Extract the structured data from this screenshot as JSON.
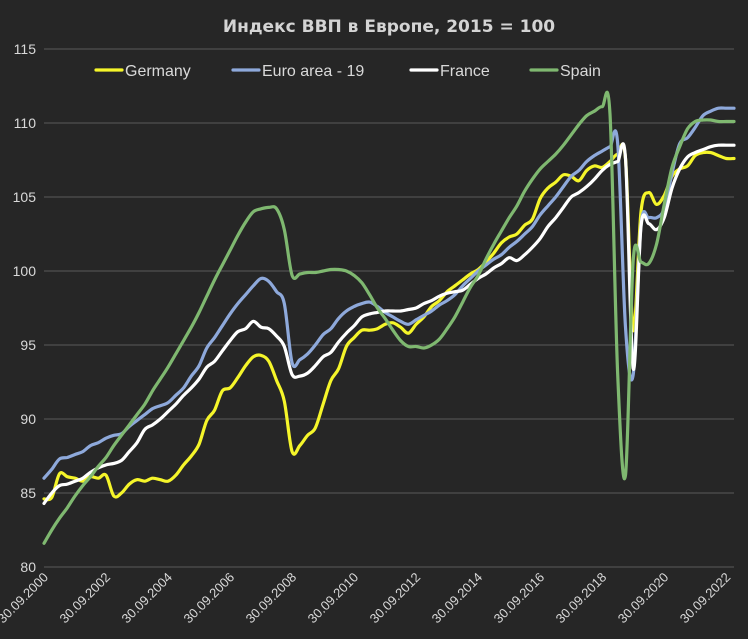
{
  "chart_data": {
    "type": "line",
    "title": "Индекс ВВП в Европе, 2015 = 100",
    "xlabel": "",
    "ylabel": "",
    "ylim": [
      80,
      115
    ],
    "yticks": [
      80,
      85,
      90,
      95,
      100,
      105,
      110,
      115
    ],
    "xlim": [
      2000.75,
      2023.0
    ],
    "x_tick_labels": [
      "30.09.2000",
      "30.09.2002",
      "30.09.2004",
      "30.09.2006",
      "30.09.2008",
      "30.09.2010",
      "30.09.2012",
      "30.09.2014",
      "30.09.2016",
      "30.09.2018",
      "30.09.2020",
      "30.09.2022"
    ],
    "x_tick_positions": [
      2000.75,
      2002.75,
      2004.75,
      2006.75,
      2008.75,
      2010.75,
      2012.75,
      2014.75,
      2016.75,
      2018.75,
      2020.75,
      2022.75
    ],
    "grid": "horizontal",
    "legend_position": "top",
    "background": "#262626",
    "series": [
      {
        "name": "Germany",
        "color": "#f5f52a",
        "x": [
          2000.75,
          2001.0,
          2001.25,
          2001.5,
          2001.75,
          2002.0,
          2002.25,
          2002.5,
          2002.75,
          2003.0,
          2003.25,
          2003.5,
          2003.75,
          2004.0,
          2004.25,
          2004.5,
          2004.75,
          2005.0,
          2005.25,
          2005.5,
          2005.75,
          2006.0,
          2006.25,
          2006.5,
          2006.75,
          2007.0,
          2007.25,
          2007.5,
          2007.75,
          2008.0,
          2008.25,
          2008.5,
          2008.75,
          2009.0,
          2009.25,
          2009.5,
          2009.75,
          2010.0,
          2010.25,
          2010.5,
          2010.75,
          2011.0,
          2011.25,
          2011.5,
          2011.75,
          2012.0,
          2012.25,
          2012.5,
          2012.75,
          2013.0,
          2013.25,
          2013.5,
          2013.75,
          2014.0,
          2014.25,
          2014.5,
          2014.75,
          2015.0,
          2015.25,
          2015.5,
          2015.75,
          2016.0,
          2016.25,
          2016.5,
          2016.75,
          2017.0,
          2017.25,
          2017.5,
          2017.75,
          2018.0,
          2018.25,
          2018.5,
          2018.75,
          2019.0,
          2019.25,
          2019.5,
          2019.75,
          2020.0,
          2020.25,
          2020.5,
          2020.75,
          2021.0,
          2021.25,
          2021.5,
          2021.75,
          2022.0,
          2022.25,
          2022.5,
          2022.75,
          2023.0
        ],
        "values": [
          84.6,
          84.7,
          86.3,
          86.1,
          86.0,
          85.8,
          86.1,
          86.0,
          86.2,
          84.8,
          85.0,
          85.6,
          85.9,
          85.8,
          86.0,
          85.9,
          85.8,
          86.2,
          86.9,
          87.5,
          88.3,
          89.9,
          90.6,
          91.9,
          92.1,
          92.8,
          93.6,
          94.2,
          94.3,
          93.9,
          92.6,
          91.2,
          87.8,
          88.2,
          88.9,
          89.4,
          91.0,
          92.6,
          93.4,
          94.9,
          95.5,
          96.0,
          96.0,
          96.1,
          96.4,
          96.5,
          96.2,
          95.8,
          96.4,
          96.9,
          97.6,
          98.0,
          98.6,
          99.0,
          99.4,
          99.8,
          100.1,
          100.6,
          101.2,
          101.9,
          102.3,
          102.5,
          103.1,
          103.5,
          104.9,
          105.6,
          106.0,
          106.5,
          106.4,
          106.1,
          106.8,
          107.1,
          107.0,
          107.4,
          107.9,
          107.6,
          96.0,
          104.0,
          105.3,
          104.5,
          105.1,
          106.4,
          106.9,
          107.1,
          107.8,
          108.0,
          108.0,
          107.8,
          107.6,
          107.6
        ]
      },
      {
        "name": "Euro area - 19",
        "color": "#8ea9db",
        "x": [
          2000.75,
          2001.0,
          2001.25,
          2001.5,
          2001.75,
          2002.0,
          2002.25,
          2002.5,
          2002.75,
          2003.0,
          2003.25,
          2003.5,
          2003.75,
          2004.0,
          2004.25,
          2004.5,
          2004.75,
          2005.0,
          2005.25,
          2005.5,
          2005.75,
          2006.0,
          2006.25,
          2006.5,
          2006.75,
          2007.0,
          2007.25,
          2007.5,
          2007.75,
          2008.0,
          2008.25,
          2008.5,
          2008.75,
          2009.0,
          2009.25,
          2009.5,
          2009.75,
          2010.0,
          2010.25,
          2010.5,
          2010.75,
          2011.0,
          2011.25,
          2011.5,
          2011.75,
          2012.0,
          2012.25,
          2012.5,
          2012.75,
          2013.0,
          2013.25,
          2013.5,
          2013.75,
          2014.0,
          2014.25,
          2014.5,
          2014.75,
          2015.0,
          2015.25,
          2015.5,
          2015.75,
          2016.0,
          2016.25,
          2016.5,
          2016.75,
          2017.0,
          2017.25,
          2017.5,
          2017.75,
          2018.0,
          2018.25,
          2018.5,
          2018.75,
          2019.0,
          2019.25,
          2019.5,
          2019.75,
          2020.0,
          2020.25,
          2020.5,
          2020.75,
          2021.0,
          2021.25,
          2021.5,
          2021.75,
          2022.0,
          2022.25,
          2022.5,
          2022.75,
          2023.0
        ],
        "values": [
          86.0,
          86.6,
          87.3,
          87.4,
          87.6,
          87.8,
          88.2,
          88.4,
          88.7,
          88.9,
          89.0,
          89.5,
          89.9,
          90.3,
          90.7,
          90.9,
          91.1,
          91.6,
          92.1,
          92.9,
          93.6,
          94.8,
          95.5,
          96.3,
          97.1,
          97.8,
          98.4,
          99.0,
          99.5,
          99.3,
          98.6,
          97.8,
          93.8,
          94.0,
          94.4,
          95.0,
          95.7,
          96.1,
          96.8,
          97.3,
          97.6,
          97.8,
          97.9,
          97.6,
          97.2,
          96.9,
          96.6,
          96.4,
          96.7,
          97.0,
          97.3,
          97.7,
          98.0,
          98.4,
          99.0,
          99.5,
          100.0,
          100.4,
          100.8,
          101.1,
          101.6,
          102.0,
          102.5,
          103.0,
          103.8,
          104.4,
          105.0,
          105.7,
          106.4,
          106.8,
          107.4,
          107.8,
          108.1,
          108.4,
          108.6,
          96.2,
          93.0,
          103.1,
          103.6,
          103.6,
          104.2,
          106.6,
          108.6,
          109.0,
          109.7,
          110.5,
          110.8,
          111.0,
          111.0,
          111.0
        ]
      },
      {
        "name": "France",
        "color": "#ffffff",
        "x": [
          2000.75,
          2001.0,
          2001.25,
          2001.5,
          2001.75,
          2002.0,
          2002.25,
          2002.5,
          2002.75,
          2003.0,
          2003.25,
          2003.5,
          2003.75,
          2004.0,
          2004.25,
          2004.5,
          2004.75,
          2005.0,
          2005.25,
          2005.5,
          2005.75,
          2006.0,
          2006.25,
          2006.5,
          2006.75,
          2007.0,
          2007.25,
          2007.5,
          2007.75,
          2008.0,
          2008.25,
          2008.5,
          2008.75,
          2009.0,
          2009.25,
          2009.5,
          2009.75,
          2010.0,
          2010.25,
          2010.5,
          2010.75,
          2011.0,
          2011.25,
          2011.5,
          2011.75,
          2012.0,
          2012.25,
          2012.5,
          2012.75,
          2013.0,
          2013.25,
          2013.5,
          2013.75,
          2014.0,
          2014.25,
          2014.5,
          2014.75,
          2015.0,
          2015.25,
          2015.5,
          2015.75,
          2016.0,
          2016.25,
          2016.5,
          2016.75,
          2017.0,
          2017.25,
          2017.5,
          2017.75,
          2018.0,
          2018.25,
          2018.5,
          2018.75,
          2019.0,
          2019.25,
          2019.5,
          2019.75,
          2020.0,
          2020.25,
          2020.5,
          2020.75,
          2021.0,
          2021.25,
          2021.5,
          2021.75,
          2022.0,
          2022.25,
          2022.5,
          2022.75,
          2023.0
        ],
        "values": [
          84.3,
          85.0,
          85.5,
          85.6,
          85.8,
          86.0,
          86.4,
          86.7,
          86.9,
          87.0,
          87.2,
          87.8,
          88.4,
          89.3,
          89.6,
          90.0,
          90.5,
          91.0,
          91.6,
          92.1,
          92.7,
          93.5,
          93.9,
          94.6,
          95.3,
          95.9,
          96.1,
          96.6,
          96.2,
          96.1,
          95.6,
          94.9,
          93.0,
          92.9,
          93.1,
          93.6,
          94.2,
          94.5,
          95.2,
          95.8,
          96.3,
          96.9,
          97.1,
          97.2,
          97.3,
          97.3,
          97.3,
          97.4,
          97.5,
          97.8,
          98.0,
          98.3,
          98.5,
          98.6,
          98.7,
          99.1,
          99.5,
          99.8,
          100.2,
          100.5,
          100.9,
          100.7,
          101.1,
          101.6,
          102.2,
          103.0,
          103.6,
          104.3,
          105.0,
          105.3,
          105.7,
          106.2,
          106.8,
          107.2,
          107.4,
          107.6,
          93.4,
          103.0,
          103.2,
          102.8,
          103.6,
          105.6,
          106.9,
          107.7,
          108.0,
          108.2,
          108.4,
          108.5,
          108.5,
          108.5
        ]
      },
      {
        "name": "Spain",
        "color": "#7fb870",
        "x": [
          2000.75,
          2001.0,
          2001.25,
          2001.5,
          2001.75,
          2002.0,
          2002.25,
          2002.5,
          2002.75,
          2003.0,
          2003.25,
          2003.5,
          2003.75,
          2004.0,
          2004.25,
          2004.5,
          2004.75,
          2005.0,
          2005.25,
          2005.5,
          2005.75,
          2006.0,
          2006.25,
          2006.5,
          2006.75,
          2007.0,
          2007.25,
          2007.5,
          2007.75,
          2008.0,
          2008.25,
          2008.5,
          2008.75,
          2009.0,
          2009.25,
          2009.5,
          2009.75,
          2010.0,
          2010.25,
          2010.5,
          2010.75,
          2011.0,
          2011.25,
          2011.5,
          2011.75,
          2012.0,
          2012.25,
          2012.5,
          2012.75,
          2013.0,
          2013.25,
          2013.5,
          2013.75,
          2014.0,
          2014.25,
          2014.5,
          2014.75,
          2015.0,
          2015.25,
          2015.5,
          2015.75,
          2016.0,
          2016.25,
          2016.5,
          2016.75,
          2017.0,
          2017.25,
          2017.5,
          2017.75,
          2018.0,
          2018.25,
          2018.5,
          2018.75,
          2019.0,
          2019.25,
          2019.5,
          2019.75,
          2020.0,
          2020.25,
          2020.5,
          2020.75,
          2021.0,
          2021.25,
          2021.5,
          2021.75,
          2022.0,
          2022.25,
          2022.5,
          2022.75,
          2023.0
        ],
        "values": [
          81.6,
          82.5,
          83.3,
          84.0,
          84.8,
          85.5,
          86.1,
          86.8,
          87.4,
          88.2,
          88.9,
          89.6,
          90.3,
          91.0,
          91.9,
          92.7,
          93.5,
          94.4,
          95.3,
          96.2,
          97.2,
          98.3,
          99.4,
          100.4,
          101.4,
          102.4,
          103.3,
          104.0,
          104.2,
          104.3,
          104.2,
          102.8,
          99.7,
          99.8,
          99.9,
          99.9,
          100.0,
          100.1,
          100.1,
          100.0,
          99.7,
          99.2,
          98.4,
          97.5,
          96.8,
          96.0,
          95.3,
          94.9,
          94.9,
          94.8,
          95.0,
          95.4,
          96.1,
          96.9,
          97.9,
          98.9,
          99.7,
          100.8,
          101.8,
          102.7,
          103.6,
          104.4,
          105.4,
          106.2,
          106.9,
          107.4,
          107.9,
          108.5,
          109.2,
          109.9,
          110.5,
          110.8,
          111.1,
          110.6,
          93.0,
          86.2,
          100.7,
          100.6,
          100.5,
          101.8,
          104.5,
          107.0,
          108.4,
          109.6,
          110.1,
          110.2,
          110.2,
          110.1,
          110.1,
          110.1
        ]
      }
    ]
  }
}
